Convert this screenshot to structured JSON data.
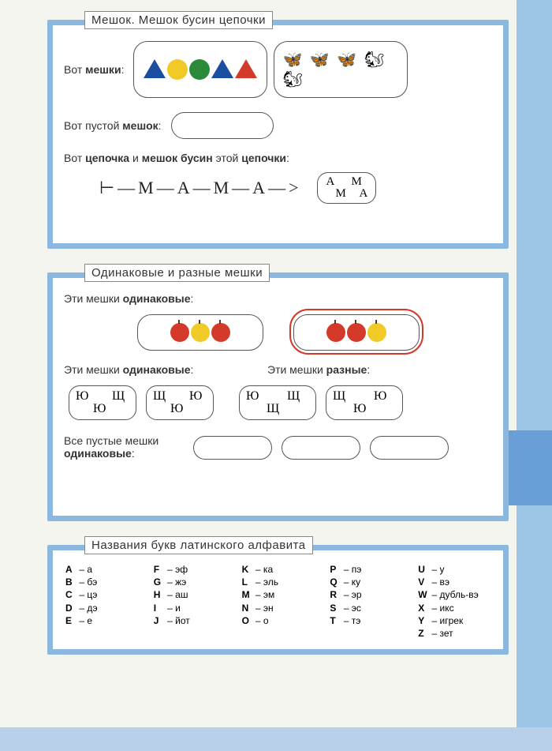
{
  "colors": {
    "frame": "#8cb8e0",
    "sidebar": "#9dc5e8",
    "tab": "#6a9ed6",
    "blue": "#1a4ea0",
    "red": "#d43a2a",
    "yellow": "#f2ca28",
    "green": "#2a8a3a"
  },
  "section1": {
    "title": "Мешок. Мешок бусин цепочки",
    "label_bags": "Вот мешки:",
    "shapes_bag": [
      {
        "type": "triangle",
        "color": "blue"
      },
      {
        "type": "circle",
        "color": "yellow"
      },
      {
        "type": "circle",
        "color": "green"
      },
      {
        "type": "triangle",
        "color": "blue"
      },
      {
        "type": "triangle",
        "color": "red"
      }
    ],
    "animals_bag": "🦋 🦋 🦋  🐿 🐿",
    "label_empty": "Вот пустой мешок:",
    "label_chain": "Вот цепочка и мешок бусин этой цепочки:",
    "chain": "⊢—М—А—М—А—>",
    "chain_bag_letters": [
      "А",
      "М",
      "М",
      "А"
    ]
  },
  "section2": {
    "title": "Одинаковые и разные мешки",
    "label_same1": "Эти мешки одинаковые:",
    "apples1": [
      "red",
      "yellow",
      "red"
    ],
    "apples2": [
      "red",
      "red",
      "yellow"
    ],
    "label_same2": "Эти мешки одинаковые:",
    "label_diff": "Эти мешки разные:",
    "bag_a": [
      "Ю",
      "Ю",
      "Щ"
    ],
    "bag_b": [
      "Щ",
      "Ю",
      "Ю"
    ],
    "bag_c": [
      "Ю",
      "Щ",
      "Щ"
    ],
    "bag_d": [
      "Щ",
      "Ю",
      "Ю"
    ],
    "label_empty_all": "Все пустые мешки одинаковые:"
  },
  "section3": {
    "title": "Названия букв латинского алфавита",
    "cols": [
      [
        [
          "A",
          "а"
        ],
        [
          "B",
          "бэ"
        ],
        [
          "C",
          "цэ"
        ],
        [
          "D",
          "дэ"
        ],
        [
          "E",
          "е"
        ]
      ],
      [
        [
          "F",
          "эф"
        ],
        [
          "G",
          "жэ"
        ],
        [
          "H",
          "аш"
        ],
        [
          "I",
          "и"
        ],
        [
          "J",
          "йот"
        ]
      ],
      [
        [
          "K",
          "ка"
        ],
        [
          "L",
          "эль"
        ],
        [
          "M",
          "эм"
        ],
        [
          "N",
          "эн"
        ],
        [
          "O",
          "о"
        ]
      ],
      [
        [
          "P",
          "пэ"
        ],
        [
          "Q",
          "ку"
        ],
        [
          "R",
          "эр"
        ],
        [
          "S",
          "эс"
        ],
        [
          "T",
          "тэ"
        ]
      ],
      [
        [
          "U",
          "у"
        ],
        [
          "V",
          "вэ"
        ],
        [
          "W",
          "дубль-вэ"
        ],
        [
          "X",
          "икс"
        ],
        [
          "Y",
          "игрек"
        ],
        [
          "Z",
          "зет"
        ]
      ]
    ]
  }
}
